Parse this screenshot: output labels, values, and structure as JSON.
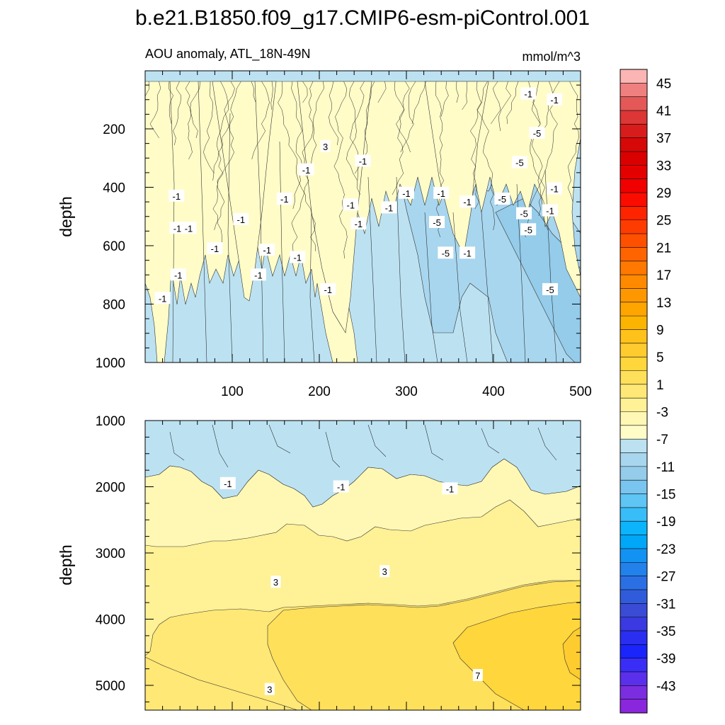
{
  "chart_data": {
    "type": "contour",
    "title": "b.e21.B1850.f09_g17.CMIP6-esm-piControl.001",
    "left_string": "AOU anomaly, ATL_18N-49N",
    "right_string": "mmol/m^3",
    "xlabel": "",
    "ylabel": "depth",
    "x_range": [
      0,
      500
    ],
    "x_ticks": [
      100,
      200,
      300,
      400,
      500
    ],
    "panels": [
      {
        "name": "upper",
        "ylim": [
          0,
          1000
        ],
        "y_inverted": true,
        "y_ticks": [
          200,
          400,
          600,
          800,
          1000
        ],
        "x_ticks_shown": true,
        "contour_labels": [
          {
            "text": "-1",
            "x": 20,
            "y": 780
          },
          {
            "text": "-1",
            "x": 38,
            "y": 700
          },
          {
            "text": "-1",
            "x": 37,
            "y": 540
          },
          {
            "text": "-1",
            "x": 36,
            "y": 430
          },
          {
            "text": "-1",
            "x": 50,
            "y": 540
          },
          {
            "text": "-1",
            "x": 80,
            "y": 610
          },
          {
            "text": "-1",
            "x": 110,
            "y": 510
          },
          {
            "text": "-1",
            "x": 130,
            "y": 700
          },
          {
            "text": "-1",
            "x": 140,
            "y": 615
          },
          {
            "text": "-1",
            "x": 175,
            "y": 640
          },
          {
            "text": "-1",
            "x": 160,
            "y": 440
          },
          {
            "text": "-1",
            "x": 185,
            "y": 340
          },
          {
            "text": "-1",
            "x": 210,
            "y": 750
          },
          {
            "text": "3",
            "x": 207,
            "y": 260
          },
          {
            "text": "-1",
            "x": 236,
            "y": 460
          },
          {
            "text": "-1",
            "x": 245,
            "y": 525
          },
          {
            "text": "-1",
            "x": 250,
            "y": 310
          },
          {
            "text": "-1",
            "x": 280,
            "y": 470
          },
          {
            "text": "-1",
            "x": 300,
            "y": 420
          },
          {
            "text": "-1",
            "x": 340,
            "y": 420
          },
          {
            "text": "-5",
            "x": 335,
            "y": 520
          },
          {
            "text": "-5",
            "x": 345,
            "y": 625
          },
          {
            "text": "-1",
            "x": 370,
            "y": 450
          },
          {
            "text": "-1",
            "x": 370,
            "y": 625
          },
          {
            "text": "-5",
            "x": 410,
            "y": 440
          },
          {
            "text": "-5",
            "x": 435,
            "y": 490
          },
          {
            "text": "-5",
            "x": 440,
            "y": 545
          },
          {
            "text": "-5",
            "x": 430,
            "y": 315
          },
          {
            "text": "-1",
            "x": 470,
            "y": 405
          },
          {
            "text": "-1",
            "x": 465,
            "y": 480
          },
          {
            "text": "-5",
            "x": 465,
            "y": 750
          },
          {
            "text": "-5",
            "x": 450,
            "y": 215
          },
          {
            "text": "-1",
            "x": 440,
            "y": 80
          },
          {
            "text": "-1",
            "x": 470,
            "y": 100
          }
        ]
      },
      {
        "name": "lower",
        "ylim": [
          1000,
          5370
        ],
        "y_inverted": true,
        "y_ticks": [
          1000,
          2000,
          3000,
          4000,
          5000
        ],
        "x_ticks_shown": false,
        "contour_labels": [
          {
            "text": "-1",
            "x": 95,
            "y": 1950
          },
          {
            "text": "-1",
            "x": 225,
            "y": 2000
          },
          {
            "text": "-1",
            "x": 350,
            "y": 2030
          },
          {
            "text": "3",
            "x": 150,
            "y": 3440
          },
          {
            "text": "3",
            "x": 275,
            "y": 3280
          },
          {
            "text": "7",
            "x": 382,
            "y": 4850
          },
          {
            "text": "3",
            "x": 143,
            "y": 5060
          }
        ]
      }
    ],
    "colorbar": {
      "orientation": "vertical",
      "levels": [
        -45,
        -43,
        -41,
        -39,
        -37,
        -35,
        -33,
        -31,
        -29,
        -27,
        -25,
        -23,
        -21,
        -19,
        -17,
        -15,
        -13,
        -11,
        -9,
        -7,
        -5,
        -3,
        -1,
        1,
        3,
        5,
        7,
        9,
        11,
        13,
        15,
        17,
        19,
        21,
        23,
        25,
        27,
        29,
        31,
        33,
        35,
        37,
        39,
        41,
        43,
        45
      ],
      "labels": [
        "45",
        "41",
        "37",
        "33",
        "29",
        "25",
        "21",
        "17",
        "13",
        "9",
        "5",
        "1",
        "-3",
        "-7",
        "-11",
        "-15",
        "-19",
        "-23",
        "-27",
        "-31",
        "-35",
        "-39",
        "-43"
      ],
      "colors_top_to_bottom": [
        "#fbb5b5",
        "#f08080",
        "#e45858",
        "#dc3636",
        "#d81c1c",
        "#d70808",
        "#db0000",
        "#e50000",
        "#f00000",
        "#fb0c00",
        "#ff2400",
        "#ff3c00",
        "#ff5000",
        "#ff6400",
        "#ff7800",
        "#ff8a00",
        "#ff9800",
        "#ffa500",
        "#fbb400",
        "#ffc21a",
        "#ffcc30",
        "#ffd63c",
        "#ffe05a",
        "#ffe876",
        "#fff196",
        "#fff8b4",
        "#fffcc8",
        "#bce2f2",
        "#a8d6ee",
        "#94ccea",
        "#79c5ef",
        "#5ec5f5",
        "#38bdf8",
        "#0cb5fb",
        "#00a7f8",
        "#1293f3",
        "#2281eb",
        "#2a70e4",
        "#305cdc",
        "#3a4cd6",
        "#3a3ae0",
        "#2a2ef0",
        "#1a24fb",
        "#3a2ef6",
        "#5a30ec",
        "#7a2ee0",
        "#8a26dc"
      ]
    }
  }
}
